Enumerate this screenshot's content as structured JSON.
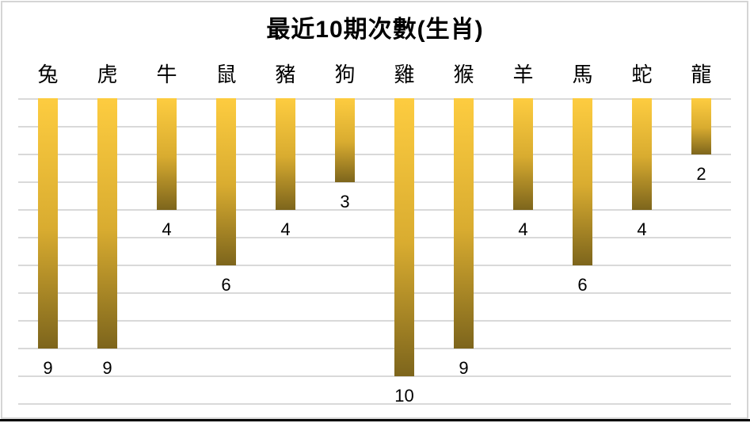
{
  "title": "最近10期次數(生肖)",
  "frame": {
    "border_color": "#d5d5d5",
    "background": "#ffffff",
    "bottom_edge_color": "#000000"
  },
  "chart_data": {
    "type": "bar",
    "orientation": "hanging-from-top",
    "title": "最近10期次數(生肖)",
    "categories": [
      "兔",
      "虎",
      "牛",
      "鼠",
      "豬",
      "狗",
      "雞",
      "猴",
      "羊",
      "馬",
      "蛇",
      "龍"
    ],
    "values": [
      9,
      9,
      4,
      6,
      4,
      3,
      10,
      9,
      4,
      6,
      4,
      2
    ],
    "xlabel": "",
    "ylabel": "",
    "ylim": [
      0,
      11
    ],
    "grid": true,
    "gridline_color": "#d9d9d9",
    "value_labels_shown": true,
    "legend": "none",
    "bar_color_top": "#FDCC40",
    "bar_color_mid": "#D9AC30",
    "bar_color_bottom": "#7D651C",
    "text_color": "#000000"
  }
}
